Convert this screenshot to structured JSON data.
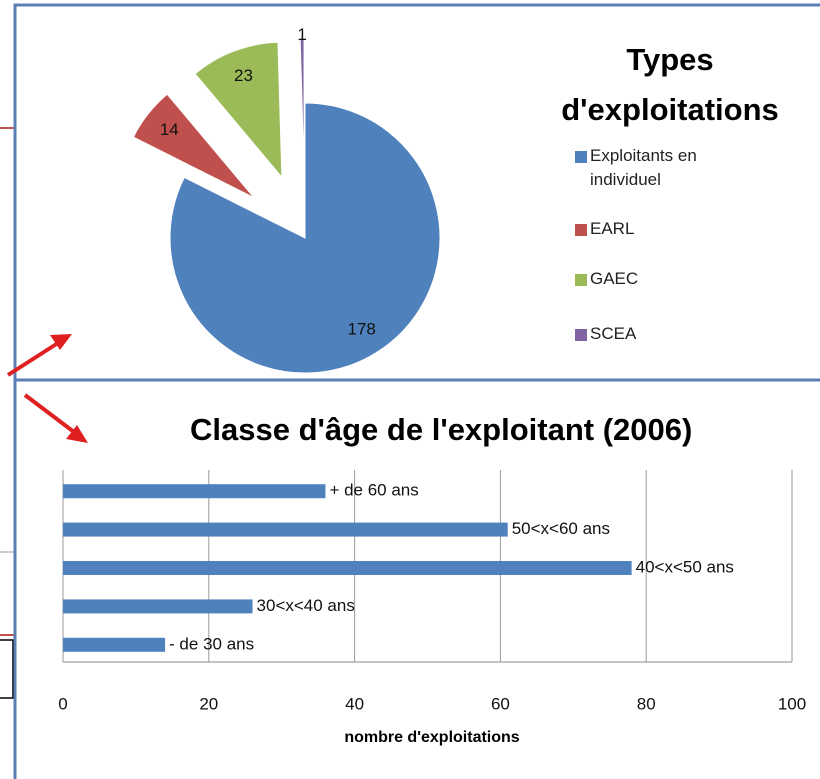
{
  "chart_data": [
    {
      "type": "pie",
      "title": "Types d'exploitations",
      "categories": [
        "Exploitants en individuel",
        "EARL",
        "GAEC",
        "SCEA"
      ],
      "values": [
        178,
        14,
        23,
        1
      ],
      "colors": [
        "#4f81bd",
        "#c0504d",
        "#9bbb59",
        "#8064a2"
      ],
      "legend": "right"
    },
    {
      "type": "bar",
      "orientation": "horizontal",
      "title": "Classe d'âge de l'exploitant (2006)",
      "categories": [
        "+ de 60 ans",
        "50<x<60 ans",
        "40<x<50 ans",
        "30<x<40 ans",
        "- de 30 ans"
      ],
      "values": [
        36,
        61,
        78,
        26,
        14
      ],
      "color": "#4f81bd",
      "xlabel": "nombre d'exploitations",
      "xlim": [
        0,
        100
      ],
      "xticks": [
        0,
        20,
        40,
        60,
        80,
        100
      ],
      "grid": true
    }
  ]
}
